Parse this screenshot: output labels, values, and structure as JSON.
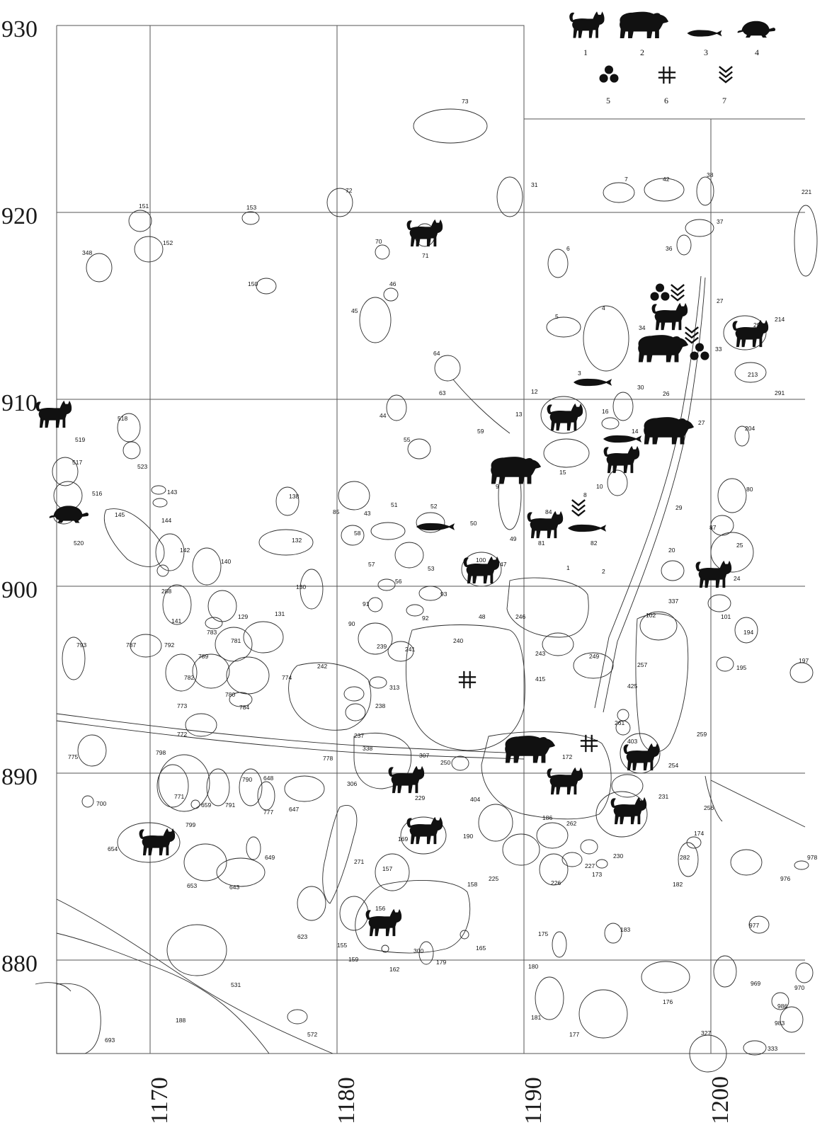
{
  "axes": {
    "y_labels": [
      "930",
      "920",
      "910",
      "900",
      "890",
      "880"
    ],
    "x_labels": [
      "1170",
      "1180",
      "1190",
      "1200"
    ]
  },
  "legend": [
    {
      "number": "1",
      "icon": "cat-icon"
    },
    {
      "number": "2",
      "icon": "bear-icon"
    },
    {
      "number": "3",
      "icon": "fish-icon"
    },
    {
      "number": "4",
      "icon": "turtle-icon"
    },
    {
      "number": "5",
      "icon": "three-dots-icon"
    },
    {
      "number": "6",
      "icon": "hash-icon"
    },
    {
      "number": "7",
      "icon": "chevrons-down-icon"
    }
  ],
  "feature_labels": [
    "1",
    "2",
    "3",
    "4",
    "5",
    "6",
    "7",
    "8",
    "9",
    "10",
    "12",
    "13",
    "14",
    "15",
    "16",
    "20",
    "24",
    "25",
    "26",
    "27",
    "27",
    "29",
    "30",
    "31",
    "33",
    "34",
    "36",
    "37",
    "38",
    "42",
    "43",
    "44",
    "45",
    "46",
    "47",
    "48",
    "49",
    "50",
    "51",
    "52",
    "53",
    "55",
    "56",
    "57",
    "58",
    "59",
    "63",
    "64",
    "70",
    "71",
    "72",
    "73",
    "80",
    "81",
    "82",
    "84",
    "85",
    "87",
    "90",
    "91",
    "92",
    "93",
    "100",
    "101",
    "102",
    "129",
    "130",
    "131",
    "132",
    "138",
    "140",
    "141",
    "142",
    "143",
    "144",
    "145",
    "150",
    "151",
    "152",
    "153",
    "155",
    "156",
    "157",
    "158",
    "159",
    "162",
    "165",
    "169",
    "172",
    "173",
    "174",
    "175",
    "176",
    "177",
    "179",
    "180",
    "181",
    "182",
    "183",
    "186",
    "188",
    "190",
    "194",
    "195",
    "197",
    "204",
    "213",
    "214",
    "221",
    "225",
    "226",
    "227",
    "229",
    "230",
    "231",
    "237",
    "238",
    "239",
    "240",
    "241",
    "242",
    "243",
    "246",
    "249",
    "250",
    "254",
    "256",
    "257",
    "259",
    "261",
    "262",
    "271",
    "282",
    "288",
    "290",
    "291",
    "300",
    "306",
    "307",
    "313",
    "327",
    "333",
    "337",
    "338",
    "348",
    "403",
    "404",
    "415",
    "425",
    "516",
    "517",
    "518",
    "519",
    "520",
    "523",
    "531",
    "572",
    "623",
    "643",
    "647",
    "648",
    "649",
    "653",
    "654",
    "659",
    "693",
    "700",
    "771",
    "772",
    "773",
    "774",
    "775",
    "777",
    "778",
    "780",
    "781",
    "782",
    "783",
    "784",
    "787",
    "789",
    "790",
    "791",
    "792",
    "793",
    "798",
    "799",
    "969",
    "970",
    "976",
    "977",
    "978",
    "983",
    "986"
  ]
}
